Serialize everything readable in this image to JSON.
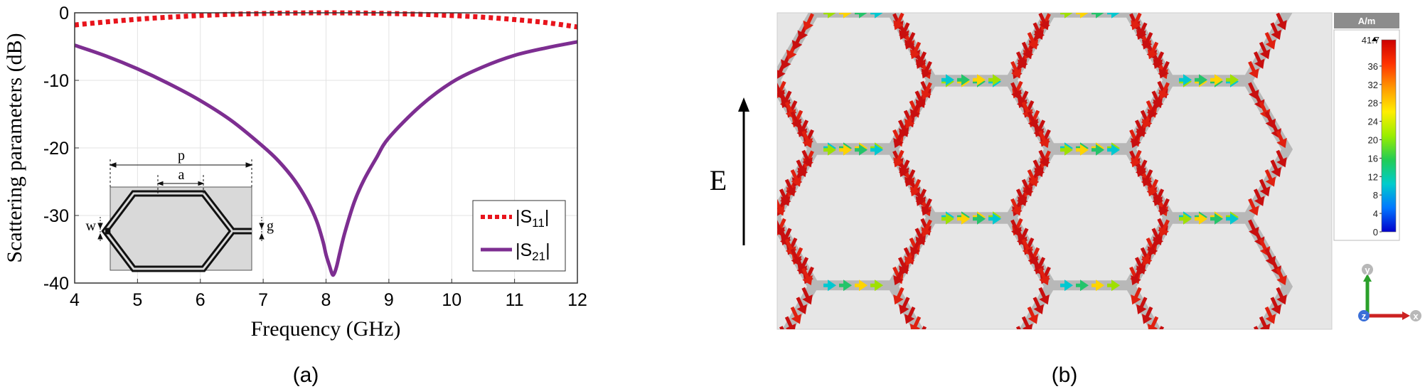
{
  "panels": {
    "a": "(a)",
    "b": "(b)"
  },
  "chart_data": {
    "type": "line",
    "xlabel": "Frequency (GHz)",
    "ylabel": "Scattering parameters (dB)",
    "xlim": [
      4,
      12
    ],
    "ylim": [
      -40,
      0
    ],
    "xticks": [
      "4",
      "5",
      "6",
      "7",
      "8",
      "9",
      "10",
      "11",
      "12"
    ],
    "yticks": [
      "0",
      "-10",
      "-20",
      "-30",
      "-40"
    ],
    "grid": true,
    "legend_position": "lower-right",
    "series": [
      {
        "name": "|S11|",
        "legend_main": "|S",
        "legend_sub": "11",
        "legend_tail": "|",
        "color": "#e8141c",
        "style": "dotted",
        "x": [
          4,
          4.5,
          5,
          5.5,
          6,
          6.5,
          7,
          7.5,
          8,
          8.5,
          9,
          9.5,
          10,
          10.5,
          11,
          11.5,
          12
        ],
        "y": [
          -1.8,
          -1.35,
          -0.95,
          -0.65,
          -0.4,
          -0.22,
          -0.1,
          -0.03,
          0,
          -0.03,
          -0.1,
          -0.22,
          -0.4,
          -0.65,
          -1.0,
          -1.45,
          -2.1
        ]
      },
      {
        "name": "|S21|",
        "legend_main": "|S",
        "legend_sub": "21",
        "legend_tail": "|",
        "color": "#7d2e91",
        "style": "solid",
        "x": [
          4,
          4.5,
          5,
          5.5,
          6,
          6.5,
          7,
          7.25,
          7.5,
          7.7,
          7.85,
          7.95,
          8.0,
          8.05,
          8.1,
          8.13,
          8.17,
          8.22,
          8.3,
          8.45,
          8.6,
          8.8,
          9,
          9.5,
          10,
          10.5,
          11,
          11.5,
          12
        ],
        "y": [
          -4.8,
          -6.4,
          -8.3,
          -10.5,
          -13.0,
          -16.0,
          -19.8,
          -22.0,
          -24.8,
          -27.8,
          -30.8,
          -33.8,
          -35.8,
          -37.3,
          -38.7,
          -38.6,
          -37.5,
          -35.5,
          -32.5,
          -28.0,
          -24.8,
          -21.5,
          -18.5,
          -13.8,
          -10.3,
          -8.0,
          -6.3,
          -5.2,
          -4.3
        ]
      }
    ]
  },
  "inset": {
    "p_label": "p",
    "a_label": "a",
    "w_label": "w",
    "g_label": "g"
  },
  "field_panel": {
    "e_label": "E",
    "colorbar": {
      "unit": "A/m",
      "max_label": "41.7",
      "ticks": [
        "36",
        "32",
        "28",
        "24",
        "20",
        "16",
        "12",
        "8",
        "4",
        "0"
      ],
      "colors": [
        "#cc0000",
        "#ff3300",
        "#ff9900",
        "#ffee00",
        "#99ee00",
        "#22cc55",
        "#00cccc",
        "#0077ff",
        "#0000cc"
      ]
    },
    "axes_triad": {
      "y": "y",
      "z": "z",
      "x": "x"
    }
  }
}
